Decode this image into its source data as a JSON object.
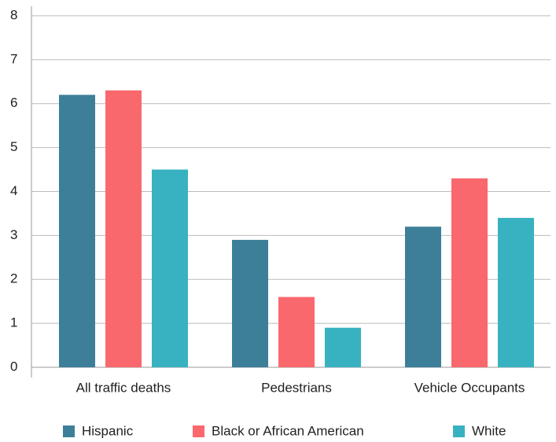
{
  "chart_data": {
    "type": "bar",
    "categories": [
      "All traffic deaths",
      "Pedestrians",
      "Vehicle Occupants"
    ],
    "series": [
      {
        "name": "Hispanic",
        "color": "#3d7f99",
        "values": [
          6.2,
          2.9,
          3.2
        ]
      },
      {
        "name": "Black or African American",
        "color": "#f9686d",
        "values": [
          6.3,
          1.6,
          4.3
        ]
      },
      {
        "name": "White",
        "color": "#38b2c0",
        "values": [
          4.5,
          0.9,
          3.4
        ]
      }
    ],
    "ylim": [
      0,
      8
    ],
    "yticks": [
      0,
      1,
      2,
      3,
      4,
      5,
      6,
      7,
      8
    ],
    "grid": true,
    "legend": "bottom"
  }
}
